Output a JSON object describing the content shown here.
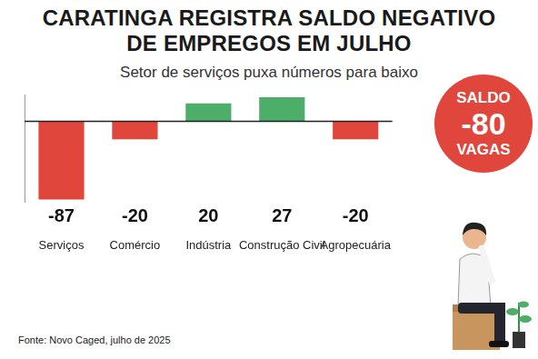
{
  "chart_data": {
    "type": "bar",
    "title": [
      "CARATINGA REGISTRA SALDO NEGATIVO",
      "DE EMPREGOS EM JULHO"
    ],
    "subtitle": "Setor de serviços puxa números para baixo",
    "categories": [
      "Serviços",
      "Comércio",
      "Indústria",
      "Construção Civil",
      "Agropecuária"
    ],
    "values": [
      -87,
      -20,
      20,
      27,
      -20
    ],
    "colors": [
      "#e0463c",
      "#e0463c",
      "#4cae69",
      "#4cae69",
      "#e0463c"
    ],
    "ylim": [
      -90,
      30
    ],
    "grid": false,
    "data_labels": true,
    "tick_labels": "x",
    "summary": {
      "label_top": "SALDO",
      "value": -80,
      "label_bottom": "VAGAS"
    },
    "source": "Fonte: Novo Caged, julho de 2025"
  }
}
